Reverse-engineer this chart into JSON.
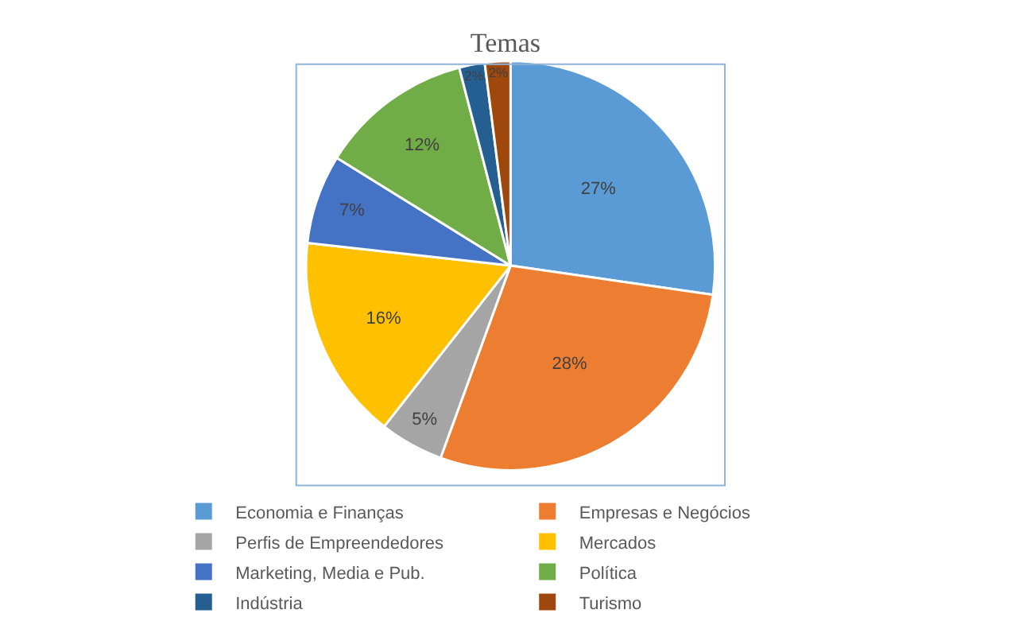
{
  "chart_data": {
    "type": "pie",
    "title": "Temas",
    "categories": [
      "Economia e Finanças",
      "Empresas e Negócios",
      "Perfis de Empreendedores",
      "Mercados",
      "Marketing, Media e Pub.",
      "Política",
      "Indústria",
      "Turismo"
    ],
    "values": [
      27,
      28,
      5,
      16,
      7,
      12,
      2,
      2
    ],
    "value_labels": [
      "27%",
      "28%",
      "5%",
      "16%",
      "7%",
      "12%",
      "2%",
      "2%"
    ],
    "colors": [
      "#5b9bd5",
      "#ed7d31",
      "#a5a5a5",
      "#ffc000",
      "#4472c4",
      "#70ad47",
      "#255e91",
      "#9e480e"
    ],
    "legend": "bottom"
  }
}
